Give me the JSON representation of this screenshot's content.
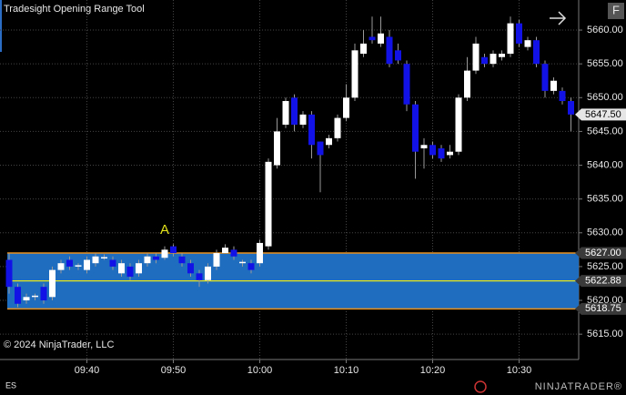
{
  "chart_data": {
    "type": "candlestick",
    "title": "Tradesight Opening Range Tool",
    "copyright": "© 2024 NinjaTrader, LLC",
    "instrument": "ES",
    "logo": "NINJATRADER®",
    "button": "F",
    "annotation": {
      "text": "A",
      "index": 18,
      "value": 5629.3
    },
    "categories": [
      null,
      null,
      null,
      null,
      null,
      null,
      null,
      null,
      null,
      "09:40",
      null,
      null,
      null,
      null,
      null,
      null,
      null,
      null,
      null,
      "09:50",
      null,
      null,
      null,
      null,
      null,
      null,
      null,
      null,
      null,
      "10:00",
      null,
      null,
      null,
      null,
      null,
      null,
      null,
      null,
      null,
      "10:10",
      null,
      null,
      null,
      null,
      null,
      null,
      null,
      null,
      null,
      "10:20",
      null,
      null,
      null,
      null,
      null,
      null,
      null,
      null,
      null,
      "10:30",
      null,
      null,
      null,
      null,
      null,
      null
    ],
    "open": [
      5626,
      5622,
      5620,
      5620.5,
      5622,
      5620.5,
      5624.5,
      5626,
      5625,
      5624.5,
      5625.5,
      5626.2,
      5626,
      5624,
      5625,
      5624,
      5625.5,
      5626.5,
      5626.3,
      5628,
      5626.5,
      5625.5,
      5624,
      5623,
      5625,
      5627,
      5627.5,
      5625.5,
      5625.5,
      5625.5,
      5628,
      5640,
      5646,
      5650,
      5646,
      5647.5,
      5643.5,
      5643,
      5644,
      5647,
      5650,
      5656.5,
      5659,
      5658,
      5659,
      5657,
      5655,
      5649,
      5642.5,
      5643,
      5642.5,
      5641.5,
      5642,
      5650,
      5654,
      5656,
      5655,
      5656,
      5656.5,
      5661,
      5657.5,
      5658.5,
      5655,
      5651,
      5651,
      5649.5
    ],
    "high": [
      5627,
      5622.5,
      5621,
      5621,
      5622.5,
      5625,
      5626,
      5626.5,
      5625.5,
      5626.5,
      5627,
      5626.8,
      5626.5,
      5626,
      5625.5,
      5626,
      5627,
      5627,
      5628,
      5628.3,
      5627,
      5626,
      5624.5,
      5625.5,
      5627.5,
      5628.3,
      5628,
      5626,
      5626,
      5629,
      5641,
      5647,
      5650,
      5650.5,
      5648,
      5648,
      5643.5,
      5644.5,
      5647.5,
      5652,
      5658,
      5660,
      5662,
      5662,
      5660,
      5658,
      5655.5,
      5649.5,
      5644,
      5643.5,
      5643,
      5643,
      5650.5,
      5656,
      5659,
      5656.5,
      5657,
      5657,
      5662,
      5661.5,
      5659,
      5659,
      5655.5,
      5653,
      5651.5,
      5650
    ],
    "low": [
      5621,
      5619,
      5619.5,
      5620,
      5619.5,
      5620,
      5624,
      5624.5,
      5624.5,
      5624,
      5625,
      5626,
      5624.5,
      5623.5,
      5623,
      5623.5,
      5625,
      5625.5,
      5626,
      5626.5,
      5625,
      5623.5,
      5622,
      5622.5,
      5624.5,
      5627,
      5626,
      5625,
      5624,
      5625,
      5627.5,
      5639.5,
      5645.5,
      5645,
      5645.5,
      5641,
      5636,
      5642.5,
      5643.5,
      5646.5,
      5649.5,
      5656,
      5658,
      5657.5,
      5654.5,
      5655,
      5648,
      5638,
      5639.5,
      5641,
      5640.5,
      5641,
      5641.5,
      5649.5,
      5653.5,
      5654.5,
      5654.5,
      5655.5,
      5656,
      5657.5,
      5657,
      5654.5,
      5650,
      5650.5,
      5649,
      5645
    ],
    "close": [
      5622,
      5619.5,
      5620.5,
      5620.7,
      5620,
      5624.5,
      5625.5,
      5625,
      5625.2,
      5626,
      5626.5,
      5626.4,
      5625,
      5625.5,
      5623.5,
      5625.5,
      5626.5,
      5626,
      5627.5,
      5627,
      5625.5,
      5624,
      5623,
      5625,
      5627,
      5627.8,
      5626.5,
      5625.7,
      5624.5,
      5628.5,
      5640.5,
      5645,
      5649.5,
      5646,
      5647.5,
      5643,
      5641.5,
      5644,
      5647,
      5650,
      5657,
      5658,
      5658.5,
      5659.5,
      5655,
      5655.5,
      5649,
      5642,
      5643,
      5641.5,
      5641,
      5642,
      5650,
      5654,
      5658,
      5655,
      5656.5,
      5656.5,
      5661,
      5658,
      5658.5,
      5655,
      5651,
      5652.5,
      5649.5,
      5647.5
    ],
    "up_color": "#ffffff",
    "down_color": "#1212e6",
    "ylim": [
      5611.25,
      5664.45
    ],
    "yticks": [
      {
        "value": 5615,
        "label": "5615.00"
      },
      {
        "value": 5620,
        "label": "5620.00"
      },
      {
        "value": 5625,
        "label": "5625.00"
      },
      {
        "value": 5630,
        "label": "5630.00"
      },
      {
        "value": 5635,
        "label": "5635.00"
      },
      {
        "value": 5640,
        "label": "5640.00"
      },
      {
        "value": 5645,
        "label": "5645.00"
      },
      {
        "value": 5650,
        "label": "5650.00"
      },
      {
        "value": 5655,
        "label": "5655.00"
      },
      {
        "value": 5660,
        "label": "5660.00"
      }
    ],
    "range": {
      "high": {
        "value": 5627,
        "label": "5627.00"
      },
      "mid": {
        "value": 5622.88,
        "label": "5622.88"
      },
      "low": {
        "value": 5618.75,
        "label": "5618.75"
      },
      "fill": "#1f6dbf",
      "border_color": "#e8901e",
      "mid_color": "#e6e61a"
    },
    "last_price": {
      "value": 5647.5,
      "label": "5647.50"
    },
    "grid": true
  }
}
